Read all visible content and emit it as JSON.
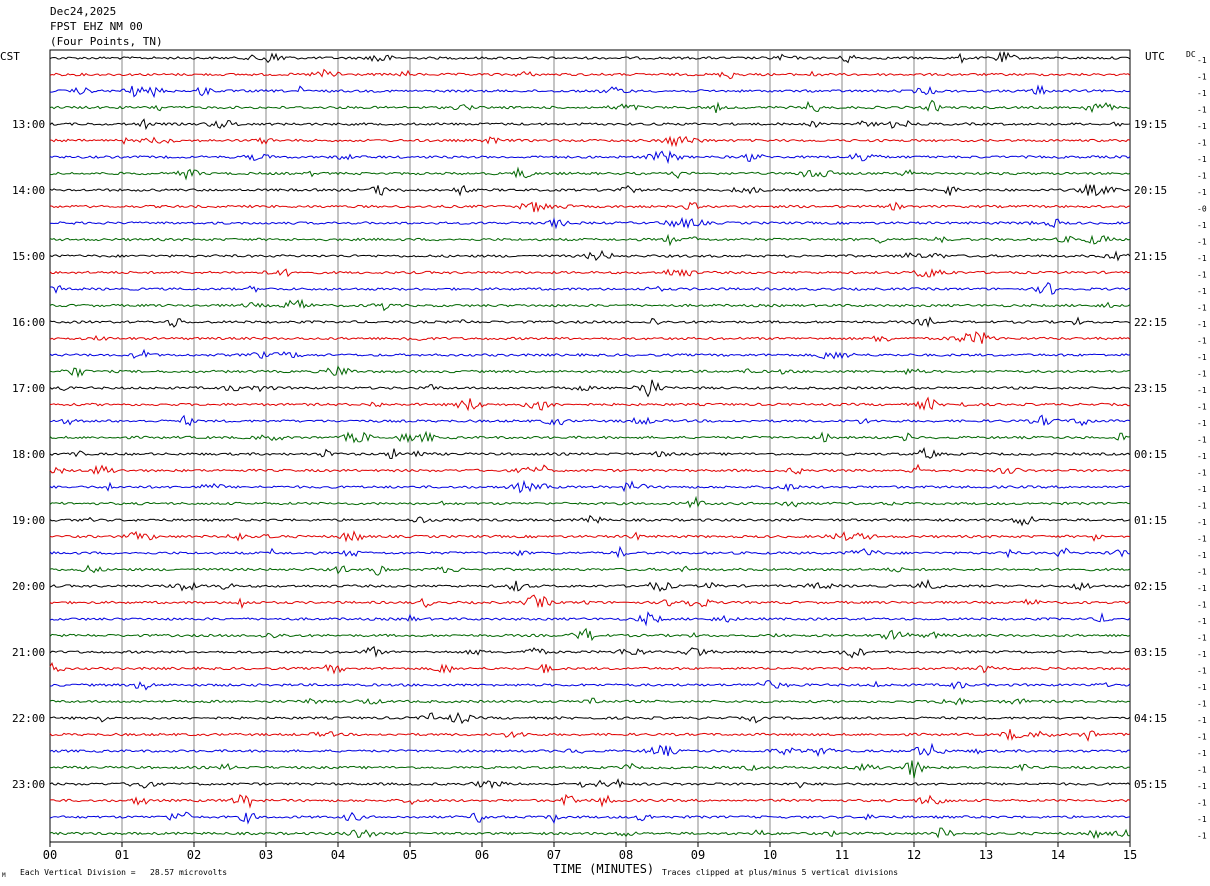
{
  "header": {
    "date": "Dec24,2025",
    "station": "FPST EHZ NM 00",
    "location": "(Four Points, TN)"
  },
  "labels": {
    "left_zone": "CST",
    "right_zone": "UTC",
    "dc_header": "DC",
    "x_title": "TIME (MINUTES)",
    "scale_note": "Each Vertical Division =   28.57 microvolts",
    "clip_note": "Traces clipped at plus/minus 5 vertical divisions",
    "corner_mark": "M"
  },
  "chart_data": {
    "type": "line",
    "title": "FPST EHZ NM 00",
    "xlabel": "TIME (MINUTES)",
    "ylabel": "",
    "xlim": [
      0,
      15
    ],
    "x_ticks": [
      "00",
      "01",
      "02",
      "03",
      "04",
      "05",
      "06",
      "07",
      "08",
      "09",
      "10",
      "11",
      "12",
      "13",
      "14",
      "15"
    ],
    "left_hour_labels": [
      "13:00",
      "14:00",
      "15:00",
      "16:00",
      "17:00",
      "18:00",
      "19:00",
      "20:00",
      "21:00",
      "22:00",
      "23:00"
    ],
    "right_hour_labels": [
      "19:15",
      "20:15",
      "21:15",
      "22:15",
      "23:15",
      "00:15",
      "01:15",
      "02:15",
      "03:15",
      "04:15",
      "05:15"
    ],
    "first_hour_label_row": 4,
    "rows_per_hour": 4,
    "trace_count": 48,
    "trace_colors": [
      "#000000",
      "#e00000",
      "#0000e0",
      "#006600"
    ],
    "dc_offsets": [
      "-1",
      "-1",
      "-1",
      "-1",
      "-1",
      "-1",
      "-1",
      "-1",
      "-1",
      "-0",
      "-1",
      "-1",
      "-1",
      "-1",
      "-1",
      "-1",
      "-1",
      "-1",
      "-1",
      "-1",
      "-1",
      "-1",
      "-1",
      "-1",
      "-1",
      "-1",
      "-1",
      "-1",
      "-1",
      "-1",
      "-1",
      "-1",
      "-1",
      "-1",
      "-1",
      "-1",
      "-1",
      "-1",
      "-1",
      "-1",
      "-1",
      "-1",
      "-1",
      "-1",
      "-1",
      "-1",
      "-1",
      "-1"
    ],
    "scale_microvolts_per_division": 28.57,
    "clip_divisions": 5,
    "grid": true
  }
}
